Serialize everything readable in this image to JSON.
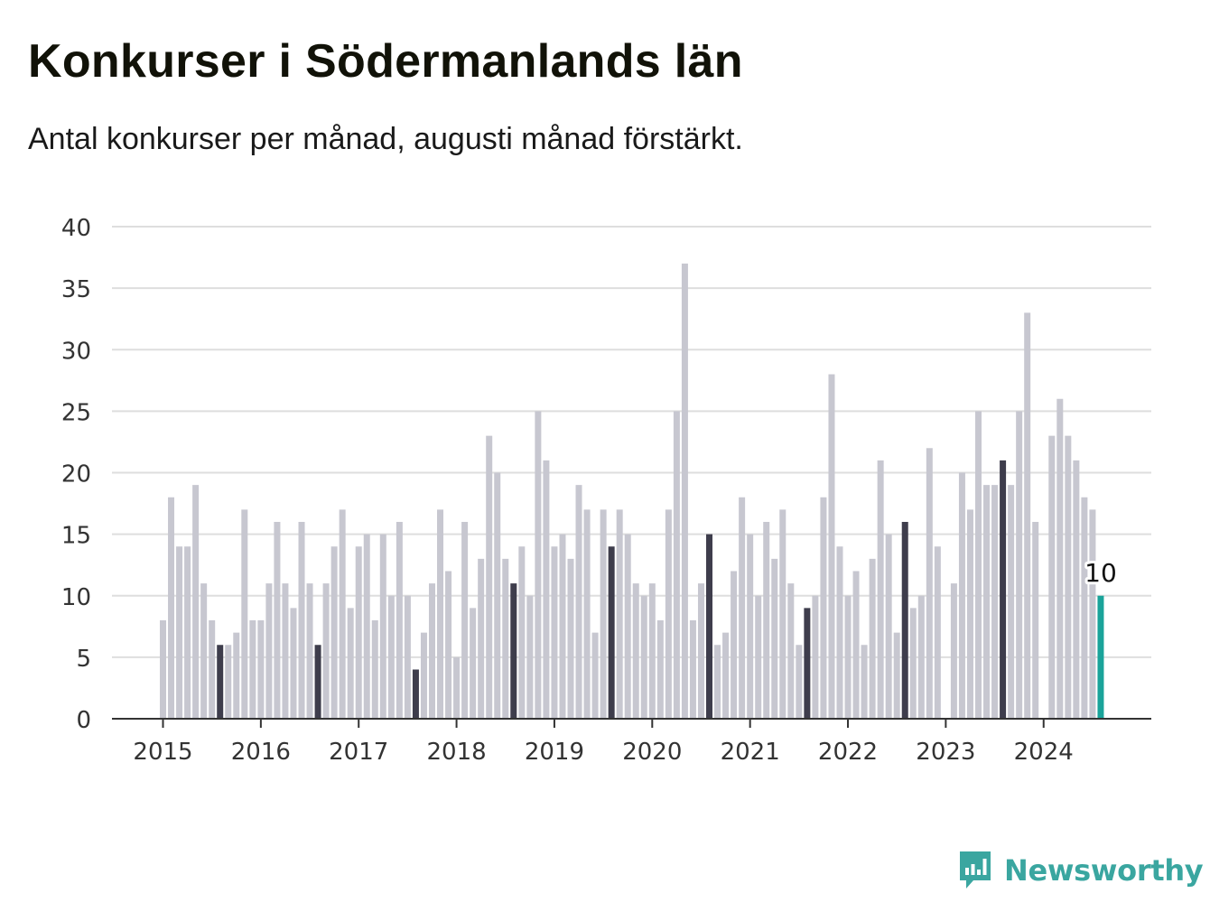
{
  "title": "Konkurser i Södermanlands län",
  "subtitle": "Antal konkurser per månad, augusti månad förstärkt.",
  "brand": {
    "name": "Newsworthy",
    "icon": "newsworthy-logo-icon"
  },
  "colors": {
    "bar_default": "#c7c7d0",
    "bar_august": "#3e3d4c",
    "bar_current": "#1aa39a",
    "grid": "#dedede",
    "axis": "#333333",
    "brand": "#3aa6a0"
  },
  "chart_data": {
    "type": "bar",
    "x_start": "2015-01",
    "x_end": "2024-08",
    "frequency": "monthly",
    "values": [
      8,
      18,
      14,
      14,
      19,
      11,
      8,
      6,
      6,
      7,
      17,
      8,
      8,
      11,
      16,
      11,
      9,
      16,
      11,
      6,
      11,
      14,
      17,
      9,
      14,
      15,
      8,
      15,
      10,
      16,
      10,
      4,
      7,
      11,
      17,
      12,
      5,
      16,
      9,
      13,
      23,
      20,
      13,
      11,
      14,
      10,
      25,
      21,
      14,
      15,
      13,
      19,
      17,
      7,
      17,
      14,
      17,
      15,
      11,
      10,
      11,
      8,
      17,
      25,
      37,
      8,
      11,
      15,
      6,
      7,
      12,
      18,
      15,
      10,
      16,
      13,
      17,
      11,
      6,
      9,
      10,
      18,
      28,
      14,
      10,
      12,
      6,
      13,
      21,
      15,
      7,
      16,
      9,
      10,
      22,
      14,
      0,
      11,
      20,
      17,
      25,
      19,
      19,
      21,
      19,
      25,
      33,
      16,
      0,
      23,
      26,
      23,
      21,
      18,
      17,
      10
    ],
    "highlight_month": "augusti",
    "current_label": "10",
    "x_tick_labels": [
      "2015",
      "2016",
      "2017",
      "2018",
      "2019",
      "2020",
      "2021",
      "2022",
      "2023",
      "2024"
    ],
    "y_tick_labels": [
      "0",
      "5",
      "10",
      "15",
      "20",
      "25",
      "30",
      "35",
      "40"
    ],
    "ylim": [
      0,
      40
    ],
    "xlabel": "",
    "ylabel": "",
    "grid": true,
    "legend": false
  }
}
